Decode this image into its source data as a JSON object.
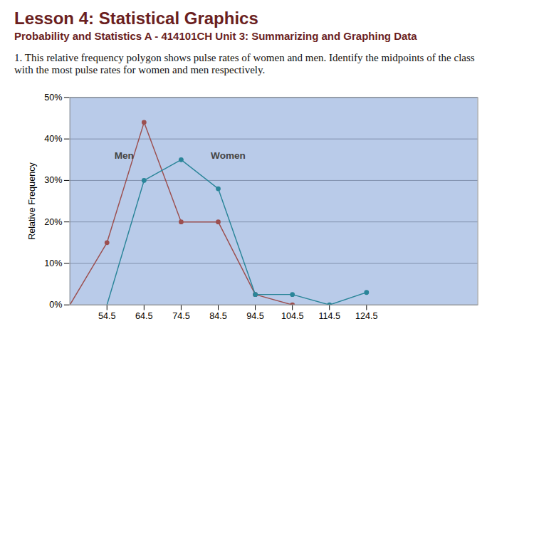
{
  "chart_data": {
    "type": "line",
    "title": "Lesson 4: Statistical Graphics",
    "subtitle": "Probability and Statistics A - 414101CH Unit 3: Summarizing and Graphing Data",
    "question": "1. This relative frequency polygon shows pulse rates of women and men. Identify the midpoints of the class with the most pulse rates for women and men respectively.",
    "y_label": "Relative Frequency",
    "series": [
      {
        "name": "Men",
        "color": "#9c4f4f",
        "marker": "circle",
        "x": [
          44.5,
          54.5,
          64.5,
          74.5,
          84.5,
          94.5,
          104.5
        ],
        "values": [
          0,
          15,
          44,
          20,
          20,
          2.5,
          0
        ]
      },
      {
        "name": "Women",
        "color": "#2a8599",
        "marker": "circle",
        "x": [
          54.5,
          64.5,
          74.5,
          84.5,
          94.5,
          104.5,
          114.5,
          124.5
        ],
        "values": [
          0,
          30,
          35,
          28,
          2.5,
          2.5,
          0,
          3
        ]
      }
    ],
    "annotations": [
      {
        "text": "Men",
        "x": 56.5,
        "y": 36,
        "series": "Men"
      },
      {
        "text": "Women",
        "x": 82.5,
        "y": 36,
        "series": "Women"
      }
    ],
    "xlim": [
      44.5,
      154.5
    ],
    "xticks": [
      54.5,
      64.5,
      74.5,
      84.5,
      94.5,
      104.5,
      114.5,
      124.5
    ],
    "ylim": [
      0,
      50
    ],
    "yticks": [
      {
        "value": 0,
        "label": "0%"
      },
      {
        "value": 10,
        "label": "10%"
      },
      {
        "value": 20,
        "label": "20%"
      },
      {
        "value": 30,
        "label": "30%"
      },
      {
        "value": 40,
        "label": "40%"
      },
      {
        "value": 50,
        "label": "50%"
      }
    ],
    "grid": true
  }
}
